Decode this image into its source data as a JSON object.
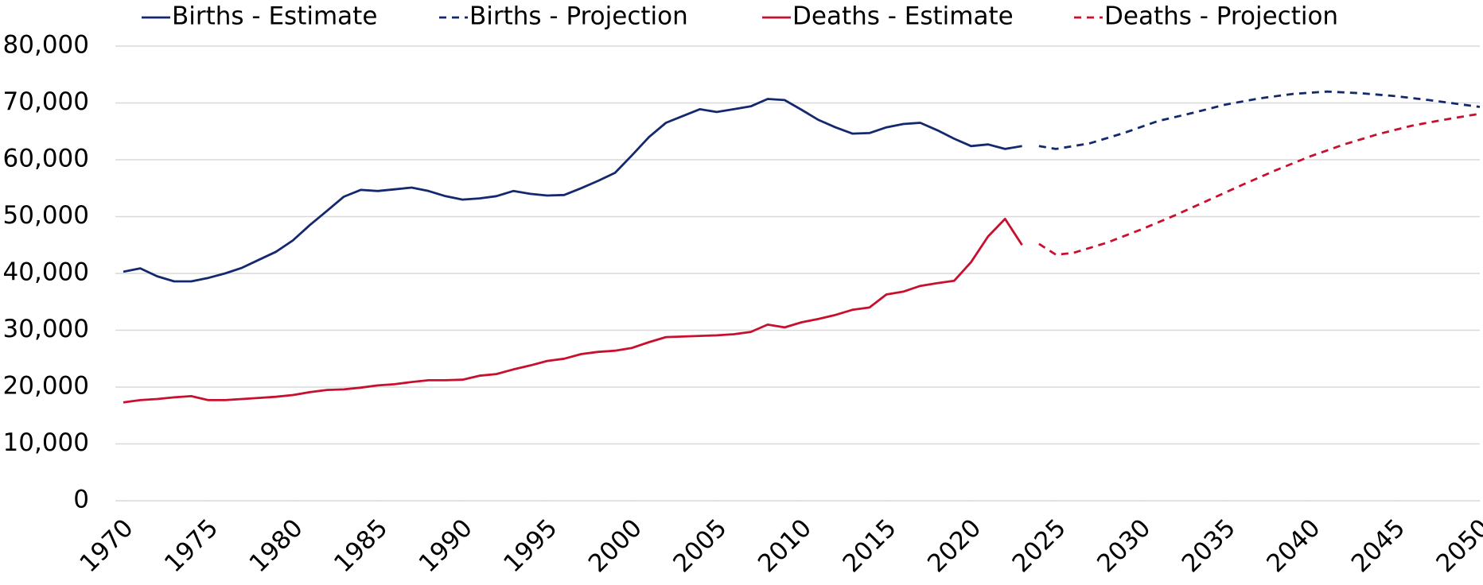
{
  "chart_data": {
    "type": "line",
    "series": [
      {
        "name": "Births - Estimate",
        "color": "#14286e",
        "dash": false,
        "x": [
          1970,
          1971,
          1972,
          1973,
          1974,
          1975,
          1976,
          1977,
          1978,
          1979,
          1980,
          1981,
          1982,
          1983,
          1984,
          1985,
          1986,
          1987,
          1988,
          1989,
          1990,
          1991,
          1992,
          1993,
          1994,
          1995,
          1996,
          1997,
          1998,
          1999,
          2000,
          2001,
          2002,
          2003,
          2004,
          2005,
          2006,
          2007,
          2008,
          2009,
          2010,
          2011,
          2012,
          2013,
          2014,
          2015,
          2016,
          2017,
          2018,
          2019,
          2020,
          2021,
          2022,
          2023
        ],
        "values": [
          40300,
          40900,
          39500,
          38600,
          38600,
          39200,
          40000,
          41000,
          42400,
          43800,
          45800,
          48500,
          51000,
          53500,
          54700,
          54500,
          54800,
          55100,
          54500,
          53600,
          53000,
          53200,
          53600,
          54500,
          54000,
          53700,
          53800,
          55000,
          56300,
          57700,
          60800,
          64000,
          66500,
          67700,
          68900,
          68400,
          68900,
          69400,
          70700,
          70500,
          68800,
          67000,
          65700,
          64600,
          64700,
          65700,
          66300,
          66500,
          65200,
          63700,
          62400,
          62700,
          61900,
          62400
        ]
      },
      {
        "name": "Births - Projection",
        "color": "#14286e",
        "dash": true,
        "x": [
          2024,
          2025,
          2027,
          2029,
          2031,
          2033,
          2035,
          2037,
          2039,
          2041,
          2043,
          2045,
          2047,
          2050
        ],
        "values": [
          62400,
          61900,
          62900,
          64700,
          66800,
          68200,
          69700,
          70800,
          71600,
          72000,
          71700,
          71200,
          70500,
          69300
        ]
      },
      {
        "name": "Deaths - Estimate",
        "color": "#c8102e",
        "dash": false,
        "x": [
          1970,
          1971,
          1972,
          1973,
          1974,
          1975,
          1976,
          1977,
          1978,
          1979,
          1980,
          1981,
          1982,
          1983,
          1984,
          1985,
          1986,
          1987,
          1988,
          1989,
          1990,
          1991,
          1992,
          1993,
          1994,
          1995,
          1996,
          1997,
          1998,
          1999,
          2000,
          2001,
          2002,
          2003,
          2004,
          2005,
          2006,
          2007,
          2008,
          2009,
          2010,
          2011,
          2012,
          2013,
          2014,
          2015,
          2016,
          2017,
          2018,
          2019,
          2020,
          2021,
          2022,
          2023
        ],
        "values": [
          17300,
          17700,
          17900,
          18200,
          18400,
          17700,
          17700,
          17900,
          18100,
          18300,
          18600,
          19100,
          19500,
          19600,
          19900,
          20300,
          20500,
          20900,
          21200,
          21200,
          21300,
          22000,
          22300,
          23100,
          23800,
          24600,
          25000,
          25800,
          26200,
          26400,
          26900,
          27900,
          28800,
          28900,
          29000,
          29100,
          29300,
          29700,
          31000,
          30500,
          31400,
          32000,
          32700,
          33600,
          34000,
          36300,
          36800,
          37800,
          38300,
          38700,
          42000,
          46500,
          49600,
          45000
        ]
      },
      {
        "name": "Deaths - Projection",
        "color": "#c8102e",
        "dash": true,
        "x": [
          2024,
          2025,
          2026,
          2028,
          2030,
          2032,
          2034,
          2036,
          2038,
          2040,
          2042,
          2044,
          2046,
          2048,
          2050
        ],
        "values": [
          45200,
          43300,
          43600,
          45400,
          47700,
          50200,
          52900,
          55600,
          58200,
          60600,
          62700,
          64500,
          66000,
          67100,
          68100
        ]
      }
    ],
    "xlim": [
      1970,
      2050
    ],
    "xticks": [
      1970,
      1975,
      1980,
      1985,
      1990,
      1995,
      2000,
      2005,
      2010,
      2015,
      2020,
      2025,
      2030,
      2035,
      2040,
      2045,
      2050
    ],
    "ylim": [
      0,
      80000
    ],
    "yticks": [
      0,
      {
        "value": 10000,
        "label": "10,000"
      },
      {
        "value": 20000,
        "label": "20,000"
      },
      {
        "value": 30000,
        "label": "30,000"
      },
      {
        "value": 40000,
        "label": "40,000"
      },
      {
        "value": 50000,
        "label": "50,000"
      },
      {
        "value": 60000,
        "label": "60,000"
      },
      {
        "value": 70000,
        "label": "70,000"
      },
      {
        "value": 80000,
        "label": "80,000"
      }
    ],
    "grid": true,
    "legend": "top"
  }
}
